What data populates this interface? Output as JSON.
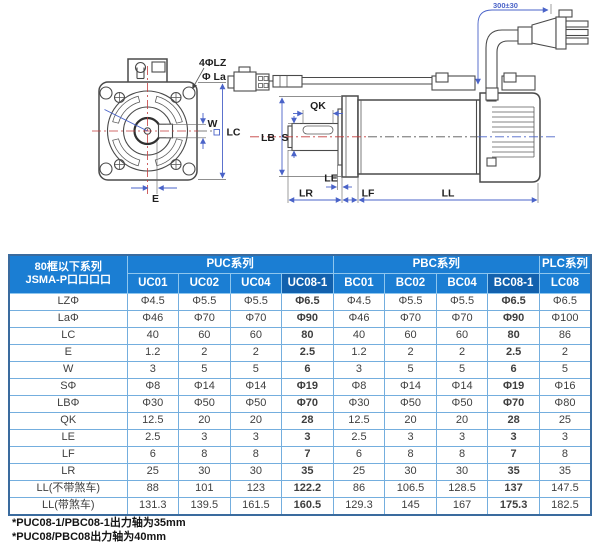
{
  "drawing": {
    "front_view": {
      "labels": {
        "holes": "4ΦLZ",
        "bolt_circle": "Φ La",
        "key_width": "W",
        "frame": "LC",
        "offset": "E"
      }
    },
    "side_view": {
      "labels": {
        "key_length": "QK",
        "flange_dia": "LB",
        "shaft_dia": "S",
        "pilot": "LE",
        "shaft_len": "LR",
        "flange_thk": "LF",
        "body_len": "LL",
        "cable_length": "300±30"
      }
    }
  },
  "table": {
    "corner_header": {
      "line1": "80框以下系列",
      "line2": "JSMA-P口口口口"
    },
    "groups": [
      {
        "label": "PUC系列",
        "span": 4
      },
      {
        "label": "PBC系列",
        "span": 4
      },
      {
        "label": "PLC系列",
        "span": 1
      }
    ],
    "columns": [
      {
        "label": "UC01",
        "dark": false
      },
      {
        "label": "UC02",
        "dark": false
      },
      {
        "label": "UC04",
        "dark": false
      },
      {
        "label": "UC08-1",
        "dark": true
      },
      {
        "label": "BC01",
        "dark": false
      },
      {
        "label": "BC02",
        "dark": false
      },
      {
        "label": "BC04",
        "dark": false
      },
      {
        "label": "BC08-1",
        "dark": true
      },
      {
        "label": "LC08",
        "dark": false
      }
    ],
    "rows": [
      {
        "label": "LZΦ",
        "values": [
          "Φ4.5",
          "Φ5.5",
          "Φ5.5",
          "Φ6.5",
          "Φ4.5",
          "Φ5.5",
          "Φ5.5",
          "Φ6.5",
          "Φ6.5"
        ]
      },
      {
        "label": "LaΦ",
        "values": [
          "Φ46",
          "Φ70",
          "Φ70",
          "Φ90",
          "Φ46",
          "Φ70",
          "Φ70",
          "Φ90",
          "Φ100"
        ]
      },
      {
        "label": "LC",
        "values": [
          "40",
          "60",
          "60",
          "80",
          "40",
          "60",
          "60",
          "80",
          "86"
        ]
      },
      {
        "label": "E",
        "values": [
          "1.2",
          "2",
          "2",
          "2.5",
          "1.2",
          "2",
          "2",
          "2.5",
          "2"
        ]
      },
      {
        "label": "W",
        "values": [
          "3",
          "5",
          "5",
          "6",
          "3",
          "5",
          "5",
          "6",
          "5"
        ]
      },
      {
        "label": "SΦ",
        "values": [
          "Φ8",
          "Φ14",
          "Φ14",
          "Φ19",
          "Φ8",
          "Φ14",
          "Φ14",
          "Φ19",
          "Φ16"
        ]
      },
      {
        "label": "LBΦ",
        "values": [
          "Φ30",
          "Φ50",
          "Φ50",
          "Φ70",
          "Φ30",
          "Φ50",
          "Φ50",
          "Φ70",
          "Φ80"
        ]
      },
      {
        "label": "QK",
        "values": [
          "12.5",
          "20",
          "20",
          "28",
          "12.5",
          "20",
          "20",
          "28",
          "25"
        ]
      },
      {
        "label": "LE",
        "values": [
          "2.5",
          "3",
          "3",
          "3",
          "2.5",
          "3",
          "3",
          "3",
          "3"
        ]
      },
      {
        "label": "LF",
        "values": [
          "6",
          "8",
          "8",
          "7",
          "6",
          "8",
          "8",
          "7",
          "8"
        ]
      },
      {
        "label": "LR",
        "values": [
          "25",
          "30",
          "30",
          "35",
          "25",
          "30",
          "30",
          "35",
          "35"
        ]
      },
      {
        "label": "LL(不带煞车)",
        "values": [
          "88",
          "101",
          "123",
          "122.2",
          "86",
          "106.5",
          "128.5",
          "137",
          "147.5"
        ]
      },
      {
        "label": "LL(带煞车)",
        "values": [
          "131.3",
          "139.5",
          "161.5",
          "160.5",
          "129.3",
          "145",
          "167",
          "175.3",
          "182.5"
        ]
      }
    ]
  },
  "footnotes": [
    "*PUC08-1/PBC08-1出力轴为35mm",
    "*PUC08/PBC08出力轴为40mm"
  ],
  "colors": {
    "header_blue": "#1b7ed3",
    "header_dark_blue": "#1261ae",
    "grid_blue": "#74aede",
    "outer_border": "#3a6b9e",
    "dimension_blue": "#4a63c8",
    "centerline_red": "#c23b3b",
    "line_dark": "#4a4a4a"
  }
}
